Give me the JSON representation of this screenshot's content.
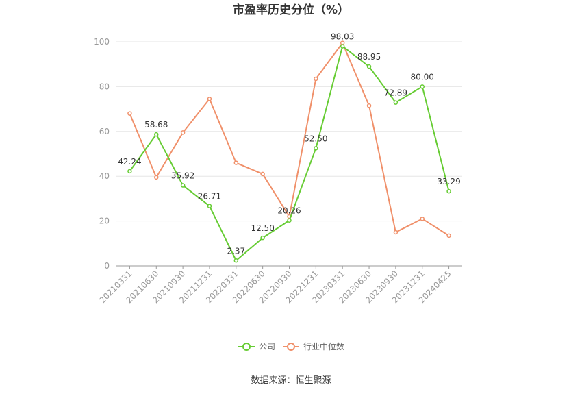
{
  "chart_data": {
    "type": "line",
    "title": "市盈率历史分位（%）",
    "categories": [
      "20210331",
      "20210630",
      "20210930",
      "20211231",
      "20220331",
      "20220630",
      "20220930",
      "20221231",
      "20230331",
      "20230630",
      "20230930",
      "20231231",
      "20240425"
    ],
    "series": [
      {
        "name": "公司",
        "color": "#66cc33",
        "values": [
          42.24,
          58.68,
          35.92,
          26.71,
          2.37,
          12.5,
          20.26,
          52.5,
          98.03,
          88.95,
          72.89,
          80.0,
          33.29
        ],
        "labels": [
          "42.24",
          "58.68",
          "35.92",
          "26.71",
          "2.37",
          "12.50",
          "20.26",
          "52.50",
          "98.03",
          "88.95",
          "72.89",
          "80.00",
          "33.29"
        ]
      },
      {
        "name": "行业中位数",
        "color": "#f0906a",
        "values": [
          68,
          39.5,
          59.5,
          74.5,
          46,
          41,
          22,
          83.5,
          99.5,
          71.5,
          15,
          21,
          13.5
        ]
      }
    ],
    "ylim": [
      0,
      100
    ],
    "yticks": [
      0,
      20,
      40,
      60,
      80,
      100
    ],
    "grid": true,
    "legend": "bottom-center",
    "xlabel": "",
    "ylabel": ""
  },
  "source": "数据来源：恒生聚源"
}
